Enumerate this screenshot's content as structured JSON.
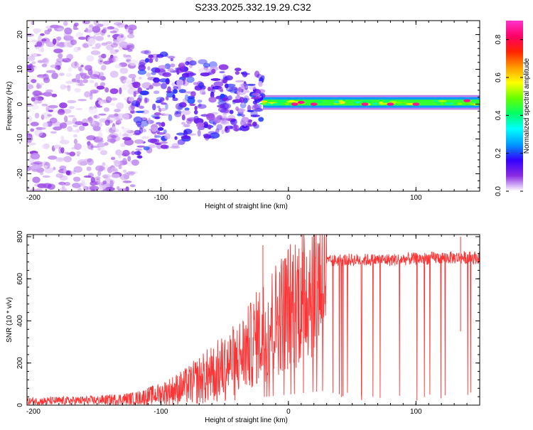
{
  "title": "S233.2025.332.19.29.C32",
  "chart_data": [
    {
      "type": "heatmap",
      "name": "spectrogram",
      "xlabel": "Height of straight line (km)",
      "ylabel": "Frequency (Hz)",
      "xlim": [
        -205,
        150
      ],
      "ylim": [
        -25,
        24
      ],
      "xticks": [
        -200,
        -100,
        0,
        100
      ],
      "yticks": [
        -20,
        -10,
        0,
        10,
        20
      ],
      "colorbar": {
        "label": "Normalized spectral amplitude",
        "range": [
          0.0,
          0.9
        ],
        "ticks": [
          0.0,
          0.2,
          0.4,
          0.6,
          0.8
        ],
        "colors": [
          "#ffffff",
          "#8a2be2",
          "#3300ff",
          "#0099ff",
          "#00ffff",
          "#00ff66",
          "#66ff00",
          "#ffff00",
          "#ff9900",
          "#ff2200",
          "#ff0066",
          "#ff33cc"
        ]
      },
      "features": [
        {
          "label": "diffuse noise",
          "x_range": [
            -205,
            -120
          ],
          "freq_range": [
            -25,
            24
          ],
          "amplitude": 0.05
        },
        {
          "label": "scattered patches",
          "x_range": [
            -120,
            -20
          ],
          "freq_range": [
            -20,
            12
          ],
          "amplitude": 0.12
        },
        {
          "label": "narrow band",
          "x_range": [
            -20,
            150
          ],
          "freq_range": [
            -1,
            2
          ],
          "amplitude": 0.45
        },
        {
          "label": "peaks",
          "x": [
            5,
            10,
            20,
            60,
            80,
            100,
            140
          ],
          "freq": [
            0,
            0.5,
            0,
            0,
            0,
            0,
            1
          ],
          "amplitude": 0.85
        }
      ]
    },
    {
      "type": "line",
      "name": "snr",
      "xlabel": "Height of straight line (km)",
      "ylabel": "SNR (10 * v/v)",
      "xlim": [
        -205,
        150
      ],
      "ylim": [
        0,
        810
      ],
      "xticks": [
        -200,
        -100,
        0,
        100
      ],
      "yticks": [
        0,
        200,
        400,
        600,
        800
      ],
      "color": "#ff3333",
      "trend": {
        "x": [
          -205,
          -150,
          -120,
          -100,
          -80,
          -60,
          -40,
          -30,
          -20,
          -10,
          0,
          10,
          20,
          30,
          40,
          60,
          80,
          100,
          120,
          150
        ],
        "y": [
          20,
          25,
          35,
          60,
          100,
          160,
          240,
          300,
          380,
          440,
          500,
          560,
          630,
          680,
          690,
          690,
          690,
          695,
          700,
          700
        ]
      },
      "spikes": [
        {
          "x": -20,
          "y": 760
        },
        {
          "x": 135,
          "y": 800
        }
      ]
    }
  ]
}
